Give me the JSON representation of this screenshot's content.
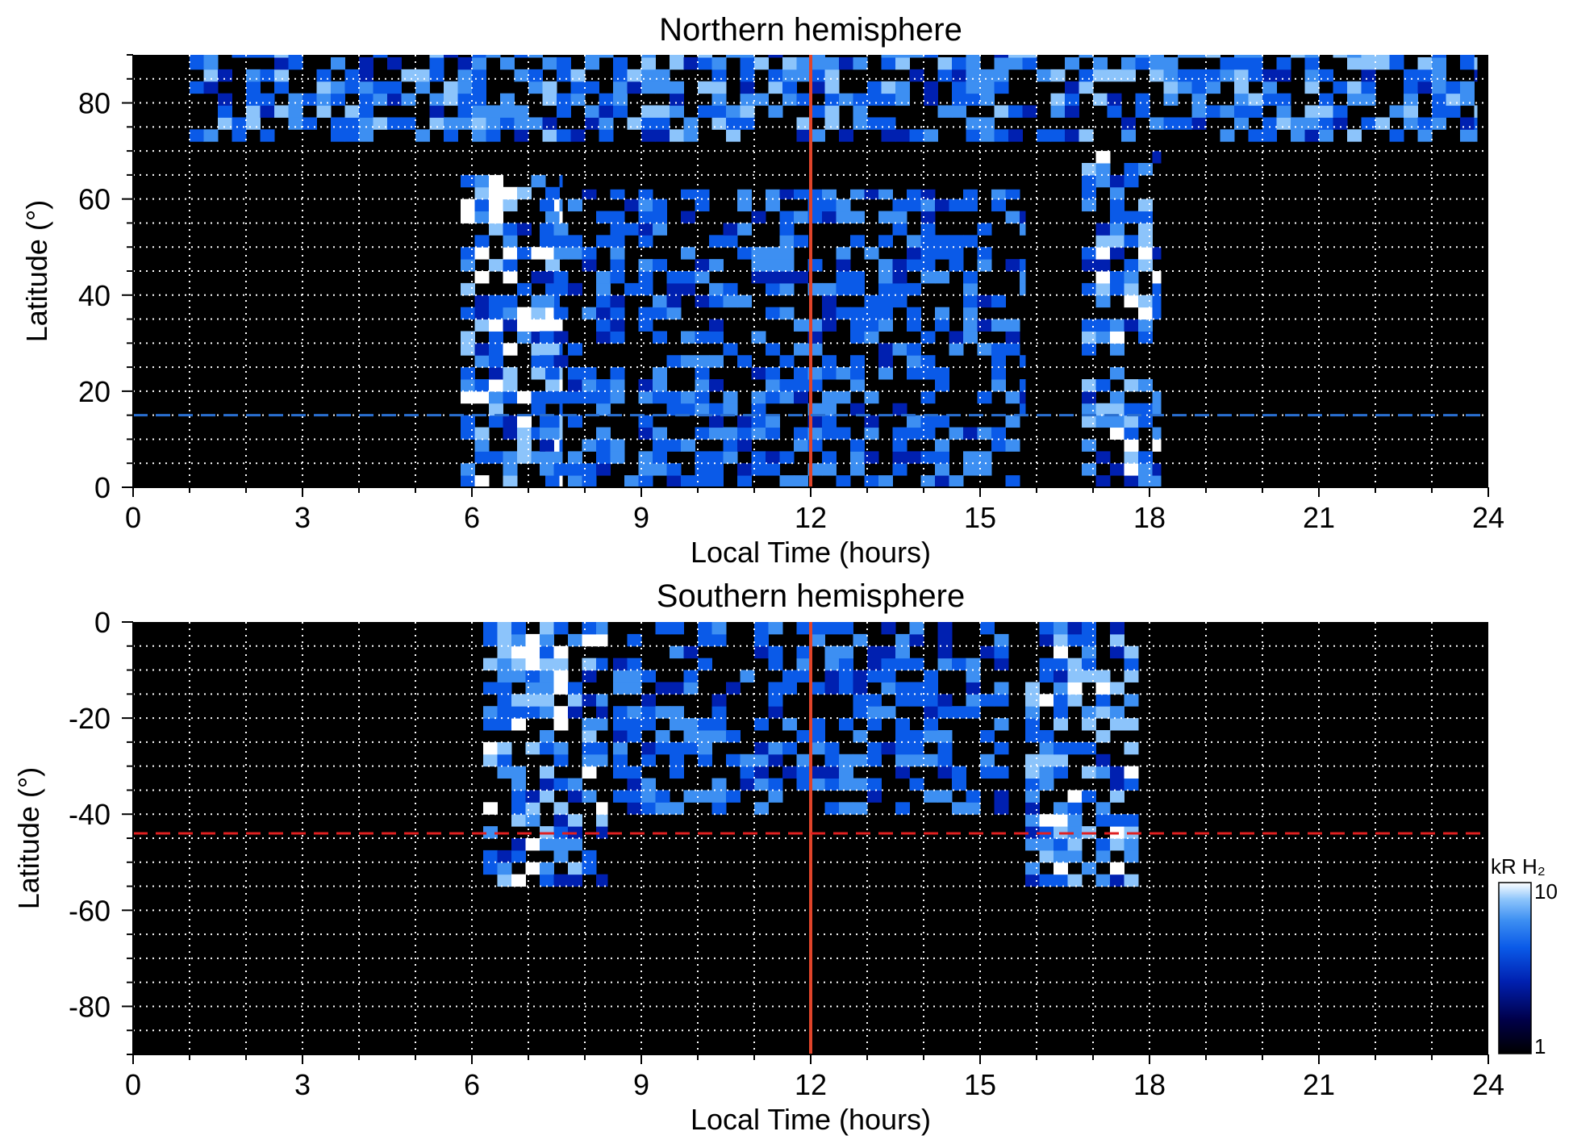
{
  "chart_data": [
    {
      "type": "heatmap",
      "title": "Northern hemisphere",
      "xlabel": "Local Time (hours)",
      "ylabel": "Latitude (°)",
      "xlim": [
        0,
        24
      ],
      "ylim": [
        0,
        90
      ],
      "xticks": [
        "0",
        "3",
        "6",
        "9",
        "12",
        "15",
        "18",
        "21",
        "24"
      ],
      "yticks": [
        "0",
        "20",
        "40",
        "60",
        "80"
      ],
      "grid": true,
      "reference_lines": [
        {
          "orientation": "vertical",
          "x": 12,
          "color": "#e0442a",
          "style": "solid"
        },
        {
          "orientation": "horizontal",
          "y": 15,
          "color": "#2a6fd0",
          "style": "dashed"
        }
      ],
      "emission_regions": [
        {
          "x": [
            5.8,
            7.6
          ],
          "y": [
            0,
            65
          ],
          "level": 8
        },
        {
          "x": [
            16.8,
            18.2
          ],
          "y": [
            0,
            70
          ],
          "level": 7
        },
        {
          "x": [
            7.2,
            15.8
          ],
          "y": [
            0,
            62
          ],
          "level": 5
        },
        {
          "x": [
            1.0,
            23.8
          ],
          "y": [
            72,
            90
          ],
          "level": 6
        }
      ]
    },
    {
      "type": "heatmap",
      "title": "Southern hemisphere",
      "xlabel": "Local Time (hours)",
      "ylabel": "Latitude (°)",
      "xlim": [
        0,
        24
      ],
      "ylim": [
        -90,
        0
      ],
      "xticks": [
        "0",
        "3",
        "6",
        "9",
        "12",
        "15",
        "18",
        "21",
        "24"
      ],
      "yticks": [
        "0",
        "-20",
        "-40",
        "-60",
        "-80"
      ],
      "grid": true,
      "reference_lines": [
        {
          "orientation": "vertical",
          "x": 12,
          "color": "#e0442a",
          "style": "solid"
        },
        {
          "orientation": "horizontal",
          "y": -44,
          "color": "#e02020",
          "style": "dashed"
        }
      ],
      "emission_regions": [
        {
          "x": [
            6.2,
            8.4
          ],
          "y": [
            -55,
            0
          ],
          "level": 7
        },
        {
          "x": [
            15.8,
            17.8
          ],
          "y": [
            -55,
            0
          ],
          "level": 7
        },
        {
          "x": [
            8.5,
            15.5
          ],
          "y": [
            -40,
            0
          ],
          "level": 5
        }
      ]
    }
  ],
  "colorbar": {
    "label": "kR H₂",
    "min_label": "1",
    "max_label": "10",
    "min": 1,
    "max": 10,
    "scale": "log",
    "colors": [
      "#000000",
      "#00004a",
      "#0020b0",
      "#0a5ae8",
      "#3d8ff2",
      "#8cc4fb",
      "#ffffff"
    ]
  }
}
